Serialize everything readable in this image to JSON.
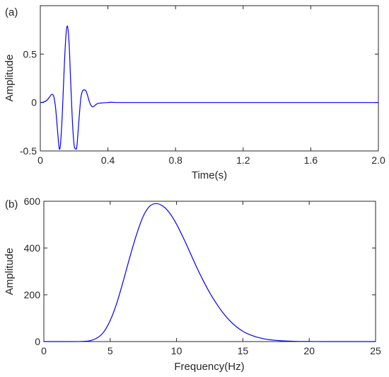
{
  "colors": {
    "line": "#0000ff",
    "axes": "#262626"
  },
  "chart_data": [
    {
      "panel_label": "(a)",
      "type": "line",
      "xlabel": "Time(s)",
      "ylabel": "Amplitude",
      "xlim": [
        0,
        2.0
      ],
      "ylim": [
        -0.5,
        1.0
      ],
      "xticks": [
        0,
        0.4,
        0.8,
        1.2,
        1.6,
        2.0
      ],
      "xtick_labels": [
        "0",
        "0.4",
        "0.8",
        "1.2",
        "1.6",
        "2.0"
      ],
      "yticks": [
        -0.5,
        0,
        0.5
      ],
      "ytick_labels": [
        "-0.5",
        "0",
        "0.5"
      ],
      "grid": false,
      "series": [
        {
          "x": [
            0,
            0.02,
            0.04,
            0.06,
            0.07,
            0.08,
            0.09,
            0.1,
            0.11,
            0.115,
            0.12,
            0.13,
            0.14,
            0.15,
            0.16,
            0.17,
            0.18,
            0.19,
            0.2,
            0.21,
            0.215,
            0.22,
            0.23,
            0.24,
            0.25,
            0.26,
            0.27,
            0.28,
            0.29,
            0.3,
            0.31,
            0.32,
            0.33,
            0.34,
            0.36,
            0.38,
            0.4,
            0.42,
            0.45,
            0.5,
            0.6,
            0.8,
            1.2,
            1.6,
            2.0
          ],
          "y": [
            0,
            0.005,
            0.025,
            0.07,
            0.085,
            0.06,
            -0.05,
            -0.25,
            -0.45,
            -0.48,
            -0.42,
            -0.12,
            0.3,
            0.65,
            0.79,
            0.62,
            0.2,
            -0.2,
            -0.44,
            -0.48,
            -0.47,
            -0.38,
            -0.15,
            0.05,
            0.12,
            0.13,
            0.12,
            0.07,
            0.01,
            -0.03,
            -0.045,
            -0.035,
            -0.02,
            -0.01,
            -0.005,
            -0.002,
            0.0,
            0.003,
            0.0,
            0.0,
            0.0,
            0.0,
            0.0,
            0.0,
            0.0
          ]
        }
      ]
    },
    {
      "panel_label": "(b)",
      "type": "line",
      "xlabel": "Frequency(Hz)",
      "ylabel": "Amplitude",
      "xlim": [
        0,
        25
      ],
      "ylim": [
        0,
        600
      ],
      "xticks": [
        0,
        5,
        10,
        15,
        20,
        25
      ],
      "xtick_labels": [
        "0",
        "5",
        "10",
        "15",
        "20",
        "25"
      ],
      "yticks": [
        0,
        200,
        400,
        600
      ],
      "ytick_labels": [
        "0",
        "200",
        "400",
        "600"
      ],
      "grid": false,
      "series": [
        {
          "x": [
            0,
            2,
            3,
            3.5,
            4,
            4.5,
            5,
            5.5,
            6,
            6.5,
            7,
            7.5,
            8,
            8.5,
            9,
            9.5,
            10,
            10.5,
            11,
            11.5,
            12,
            12.5,
            13,
            13.5,
            14,
            14.5,
            15,
            15.5,
            16,
            16.5,
            17,
            18,
            19,
            20,
            21,
            22,
            25
          ],
          "y": [
            0,
            0,
            1,
            4,
            15,
            40,
            90,
            165,
            262,
            365,
            460,
            537,
            580,
            590,
            578,
            548,
            502,
            445,
            383,
            320,
            262,
            209,
            163,
            123,
            90,
            64,
            44,
            30,
            20,
            13,
            8,
            3,
            1,
            0.5,
            0,
            0,
            0
          ]
        }
      ]
    }
  ]
}
